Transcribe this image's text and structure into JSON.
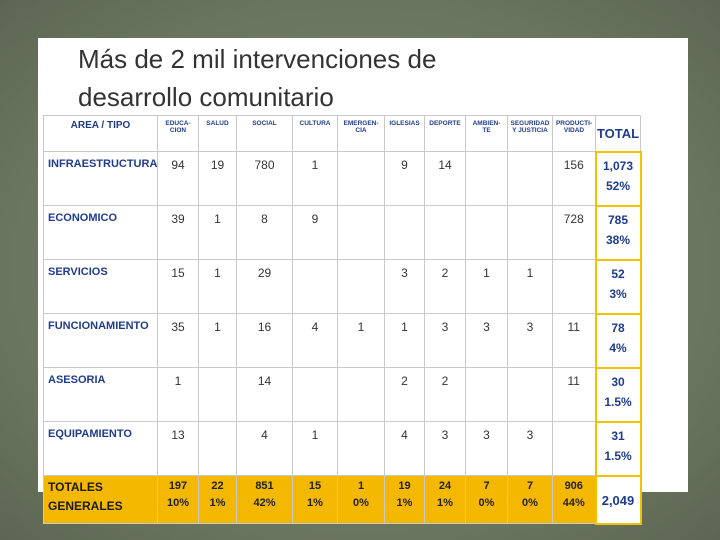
{
  "slide": {
    "title": "Más de 2 mil intervenciones de\ndesarrollo comunitario"
  },
  "table": {
    "header": [
      "AREA / TIPO",
      "EDUCA-\nCION",
      "SALUD",
      "SOCIAL",
      "CULTURA",
      "EMERGEN-\nCIA",
      "IGLESIAS",
      "DEPORTE",
      "AMBIEN-\nTE",
      "SEGURIDAD\nY JUSTICIA",
      "PRODUCTI-\nVIDAD",
      "TOTAL"
    ],
    "rows": [
      {
        "area": "INFRAESTRUCTURA",
        "cells": [
          94,
          19,
          780,
          1,
          null,
          9,
          14,
          null,
          null,
          156
        ],
        "total": "1,073",
        "percent": "52%"
      },
      {
        "area": "ECONOMICO",
        "cells": [
          39,
          1,
          8,
          9,
          null,
          null,
          null,
          null,
          null,
          728
        ],
        "total": 785,
        "percent": "38%"
      },
      {
        "area": "SERVICIOS",
        "cells": [
          15,
          1,
          29,
          null,
          null,
          3,
          2,
          1,
          1,
          null
        ],
        "total": 52,
        "percent": "3%"
      },
      {
        "area": "FUNCIONAMIENTO",
        "cells": [
          35,
          1,
          16,
          4,
          1,
          1,
          3,
          3,
          3,
          11
        ],
        "total": 78,
        "percent": "4%"
      },
      {
        "area": "ASESORIA",
        "cells": [
          1,
          null,
          14,
          null,
          null,
          2,
          2,
          null,
          null,
          11
        ],
        "total": 30,
        "percent": "1.5%"
      },
      {
        "area": "EQUIPAMIENTO",
        "cells": [
          13,
          null,
          4,
          1,
          null,
          4,
          3,
          3,
          3,
          null
        ],
        "total": 31,
        "percent": "1.5%"
      }
    ],
    "totals": {
      "label": "TOTALES\nGENERALES",
      "cells": [
        {
          "value": 197,
          "percent": "10%"
        },
        {
          "value": 22,
          "percent": "1%"
        },
        {
          "value": 851,
          "percent": "42%"
        },
        {
          "value": 15,
          "percent": "1%"
        },
        {
          "value": 1,
          "percent": "0%"
        },
        {
          "value": 19,
          "percent": "1%"
        },
        {
          "value": 24,
          "percent": "1%"
        },
        {
          "value": 7,
          "percent": "0%"
        },
        {
          "value": 7,
          "percent": "0%"
        },
        {
          "value": 906,
          "percent": "44%"
        }
      ],
      "total": "2,049"
    }
  }
}
